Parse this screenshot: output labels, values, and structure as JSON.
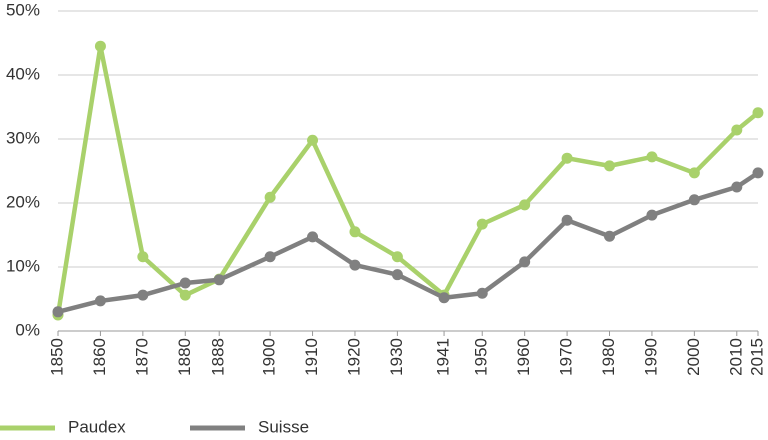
{
  "chart_data": {
    "type": "line",
    "x": [
      1850,
      1860,
      1870,
      1880,
      1888,
      1900,
      1910,
      1920,
      1930,
      1941,
      1950,
      1960,
      1970,
      1980,
      1990,
      2000,
      2010,
      2015
    ],
    "series": [
      {
        "name": "Paudex",
        "color": "#a9d16b",
        "values": [
          2.5,
          44.5,
          11.6,
          5.6,
          8.1,
          20.9,
          29.8,
          15.5,
          11.6,
          5.6,
          16.7,
          19.7,
          27.0,
          25.8,
          27.2,
          24.7,
          31.4,
          34.1
        ]
      },
      {
        "name": "Suisse",
        "color": "#808080",
        "values": [
          3.0,
          4.7,
          5.6,
          7.5,
          8.0,
          11.6,
          14.7,
          10.3,
          8.8,
          5.2,
          5.9,
          10.8,
          17.3,
          14.8,
          18.1,
          20.5,
          22.5,
          24.7
        ]
      }
    ],
    "xlim": [
      1850,
      2015
    ],
    "xticks": [
      1850,
      1860,
      1870,
      1880,
      1888,
      1900,
      1910,
      1920,
      1930,
      1941,
      1950,
      1960,
      1970,
      1980,
      1990,
      2000,
      2010,
      2015
    ],
    "ylim": [
      0,
      50
    ],
    "yticks": [
      {
        "value": 0,
        "label": "0%"
      },
      {
        "value": 10,
        "label": "10%"
      },
      {
        "value": 20,
        "label": "20%"
      },
      {
        "value": 30,
        "label": "30%"
      },
      {
        "value": 40,
        "label": "40%"
      },
      {
        "value": 50,
        "label": "50%"
      }
    ],
    "grid": true,
    "legend": "bottom"
  }
}
